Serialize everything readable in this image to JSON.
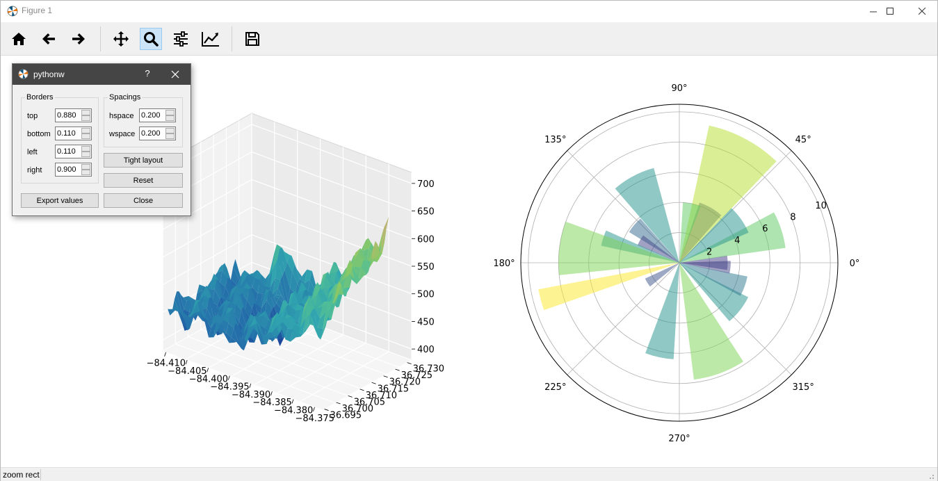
{
  "window": {
    "title": "Figure 1"
  },
  "toolbar": {
    "buttons": [
      {
        "name": "home-icon",
        "tooltip": "Home"
      },
      {
        "name": "back-arrow-icon",
        "tooltip": "Back"
      },
      {
        "name": "forward-arrow-icon",
        "tooltip": "Forward"
      },
      {
        "name": "pan-icon",
        "tooltip": "Pan"
      },
      {
        "name": "zoom-icon",
        "tooltip": "Zoom",
        "active": true
      },
      {
        "name": "subplots-icon",
        "tooltip": "Subplots"
      },
      {
        "name": "customize-icon",
        "tooltip": "Customize"
      },
      {
        "name": "save-icon",
        "tooltip": "Save"
      }
    ]
  },
  "status": {
    "text": "zoom rect"
  },
  "dialog": {
    "title": "pythonw",
    "help": "?",
    "borders": {
      "title": "Borders",
      "fields": [
        {
          "label": "top",
          "value": "0.880"
        },
        {
          "label": "bottom",
          "value": "0.110"
        },
        {
          "label": "left",
          "value": "0.110"
        },
        {
          "label": "right",
          "value": "0.900"
        }
      ]
    },
    "spacings": {
      "title": "Spacings",
      "fields": [
        {
          "label": "hspace",
          "value": "0.200"
        },
        {
          "label": "wspace",
          "value": "0.200"
        }
      ]
    },
    "buttons": {
      "tight_layout": "Tight layout",
      "reset": "Reset",
      "export": "Export values",
      "close": "Close"
    }
  },
  "chart_data": [
    {
      "type": "surface3d",
      "title": "",
      "z_ticks": [
        "400",
        "450",
        "500",
        "550",
        "600",
        "650",
        "700"
      ],
      "x_ticks": [
        "−84.410",
        "−84.405",
        "−84.400",
        "−84.395",
        "−84.390",
        "−84.385",
        "−84.380",
        "−84.375"
      ],
      "y_ticks": [
        "36.695",
        "36.700",
        "36.705",
        "36.710",
        "36.715",
        "36.720",
        "36.725",
        "36.730"
      ],
      "zlim": [
        380,
        720
      ],
      "colormap": "gist_earth"
    },
    {
      "type": "polar-bar",
      "title": "",
      "angle_labels": [
        "0°",
        "45°",
        "90°",
        "135°",
        "180°",
        "225°",
        "270°",
        "315°"
      ],
      "radial_ticks": [
        "2",
        "4",
        "6",
        "8",
        "10"
      ],
      "rmax": 10.5,
      "bars": [
        {
          "theta": 0,
          "r": 3.2,
          "width": 0.3,
          "color": "#443983"
        },
        {
          "theta": 18,
          "r": 7.1,
          "width": 0.35,
          "color": "#5ec962"
        },
        {
          "theta": 35,
          "r": 5.0,
          "width": 0.4,
          "color": "#21918c"
        },
        {
          "theta": 60,
          "r": 4.2,
          "width": 0.4,
          "color": "#3b528b"
        },
        {
          "theta": 62,
          "r": 9.3,
          "width": 0.55,
          "color": "#b5de2b"
        },
        {
          "theta": 78,
          "r": 4.0,
          "width": 0.3,
          "color": "#5ec962"
        },
        {
          "theta": 118,
          "r": 6.5,
          "width": 0.45,
          "color": "#21918c"
        },
        {
          "theta": 140,
          "r": 3.9,
          "width": 0.3,
          "color": "#31688e"
        },
        {
          "theta": 150,
          "r": 3.0,
          "width": 0.25,
          "color": "#414487"
        },
        {
          "theta": 162,
          "r": 5.3,
          "width": 0.2,
          "color": "#21918c"
        },
        {
          "theta": 173,
          "r": 8.0,
          "width": 0.45,
          "color": "#7ad151"
        },
        {
          "theta": 195,
          "r": 9.5,
          "width": 0.15,
          "color": "#fde725"
        },
        {
          "theta": 212,
          "r": 2.5,
          "width": 0.25,
          "color": "#3b528b"
        },
        {
          "theta": 258,
          "r": 6.4,
          "width": 0.3,
          "color": "#21918c"
        },
        {
          "theta": 290,
          "r": 7.8,
          "width": 0.45,
          "color": "#7ad151"
        },
        {
          "theta": 322,
          "r": 5.1,
          "width": 0.4,
          "color": "#21918c"
        },
        {
          "theta": 340,
          "r": 4.6,
          "width": 0.3,
          "color": "#2a788e"
        },
        {
          "theta": 355,
          "r": 3.4,
          "width": 0.25,
          "color": "#414487"
        }
      ]
    }
  ]
}
